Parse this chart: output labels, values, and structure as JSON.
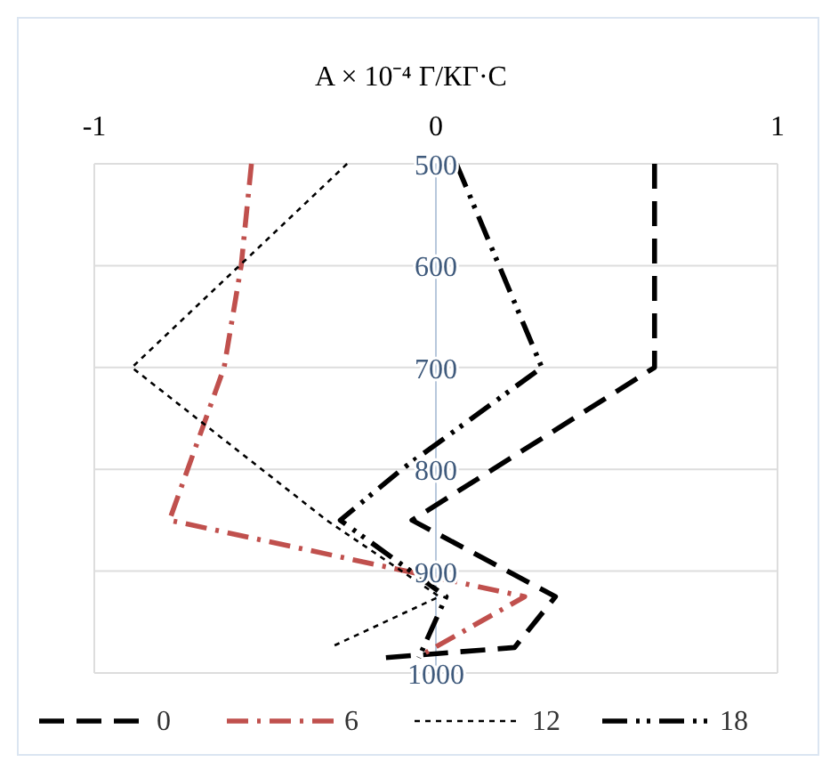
{
  "chart_data": {
    "type": "line",
    "title": "A × 10⁻⁴ Г/КГ·С",
    "xlim": [
      -1,
      1
    ],
    "xticks": [
      -1,
      0,
      1
    ],
    "ylim": [
      1000,
      500
    ],
    "yticks": [
      500,
      600,
      700,
      800,
      900,
      1000
    ],
    "grid": true,
    "legend": "bottom",
    "series": [
      {
        "name": "0",
        "color": "#000000",
        "line_style": "dashed",
        "x": [
          0.64,
          0.64,
          -0.07,
          0.35,
          0.23,
          -0.15
        ],
        "values": [
          500,
          700,
          850,
          925,
          975,
          985
        ]
      },
      {
        "name": "6",
        "color": "#c0504d",
        "line_style": "dashed",
        "x": [
          -0.54,
          -0.57,
          -0.62,
          -0.78,
          0.26,
          -0.03
        ],
        "values": [
          500,
          600,
          700,
          850,
          925,
          980
        ]
      },
      {
        "name": "12",
        "color": "#000000",
        "line_style": "dotted",
        "x": [
          -0.26,
          -0.89,
          -0.32,
          0.01,
          -0.31
        ],
        "values": [
          500,
          700,
          850,
          925,
          975
        ]
      },
      {
        "name": "18",
        "color": "#000000",
        "line_style": "dashed",
        "x": [
          0.06,
          0.31,
          -0.1,
          -0.28,
          0.03,
          -0.05
        ],
        "values": [
          500,
          700,
          800,
          850,
          925,
          985
        ]
      }
    ]
  }
}
